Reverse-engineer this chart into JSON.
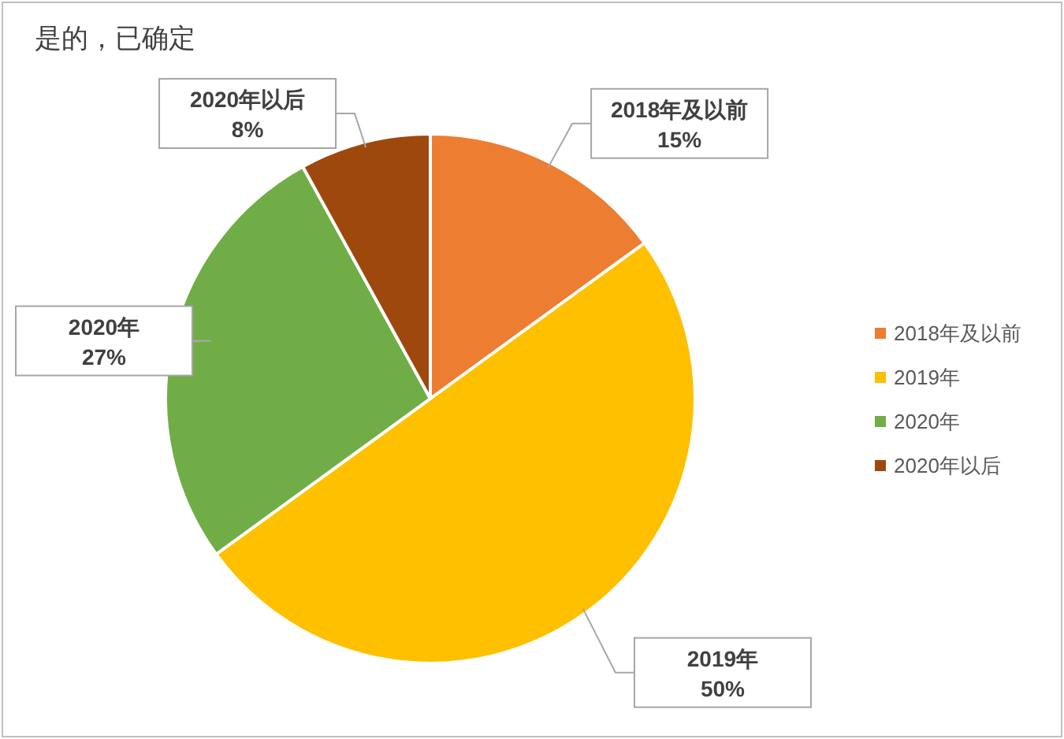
{
  "chart_data": {
    "type": "pie",
    "title": "是的，已确定",
    "categories": [
      "2018年及以前",
      "2019年",
      "2020年",
      "2020年以后"
    ],
    "values": [
      15,
      50,
      27,
      8
    ],
    "value_labels": [
      "15%",
      "50%",
      "27%",
      "8%"
    ],
    "colors": [
      "#ed7d31",
      "#ffc000",
      "#70ad47",
      "#9e480e"
    ],
    "legend": "right"
  }
}
